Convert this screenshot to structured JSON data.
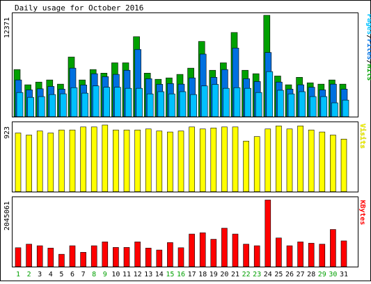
{
  "title": "Daily usage for October 2016",
  "colors": {
    "hits": "#00a000",
    "files": "#0070e0",
    "pages": "#00c0ff",
    "visits": "#ffff00",
    "kbytes": "#ff0000",
    "weekend_label": "#00a000",
    "weekday_label": "#000000",
    "frame": "#000000",
    "bar_outline": "#000000"
  },
  "chart_data": [
    {
      "type": "bar",
      "panel": "top",
      "y_tick_label": "12371",
      "ylim": [
        0,
        12371
      ],
      "legend_labels": [
        "Pages",
        "/",
        "Files",
        "/",
        "Hits"
      ],
      "legend_colors": [
        "#00c0ff",
        "#000000",
        "#0070e0",
        "#000000",
        "#00a000"
      ],
      "categories": [
        "1",
        "2",
        "3",
        "4",
        "5",
        "6",
        "7",
        "8",
        "9",
        "10",
        "11",
        "12",
        "13",
        "14",
        "15",
        "16",
        "17",
        "18",
        "19",
        "20",
        "21",
        "22",
        "23",
        "24",
        "25",
        "26",
        "27",
        "28",
        "29",
        "30",
        "31"
      ],
      "weekend": [
        true,
        true,
        false,
        false,
        false,
        false,
        false,
        true,
        true,
        false,
        false,
        false,
        false,
        false,
        true,
        true,
        false,
        false,
        false,
        false,
        false,
        true,
        true,
        false,
        false,
        false,
        false,
        false,
        true,
        true,
        false
      ],
      "series": [
        {
          "name": "Hits",
          "values": [
            5750,
            3890,
            4220,
            4480,
            3970,
            7280,
            4480,
            5750,
            5310,
            6570,
            6570,
            9760,
            5310,
            4560,
            4730,
            5160,
            5920,
            9180,
            5660,
            6570,
            10270,
            5660,
            5240,
            12371,
            4960,
            3890,
            4800,
            4130,
            3970,
            4480,
            3970
          ]
        },
        {
          "name": "Files",
          "values": [
            4480,
            3270,
            3400,
            3690,
            3360,
            5920,
            3870,
            5240,
            4880,
            5160,
            5660,
            8200,
            4630,
            3950,
            4040,
            3970,
            4730,
            7630,
            4800,
            5750,
            8370,
            4630,
            4290,
            7830,
            4220,
            3360,
            3890,
            3590,
            3270,
            3970,
            3360
          ]
        },
        {
          "name": "Pages",
          "values": [
            2950,
            2360,
            2450,
            2700,
            2790,
            3540,
            2870,
            3750,
            3590,
            3590,
            3460,
            3460,
            2780,
            3050,
            2780,
            3050,
            2700,
            3750,
            3940,
            3460,
            3540,
            3460,
            2950,
            5500,
            3220,
            2780,
            3050,
            2450,
            2450,
            1690,
            2020
          ]
        }
      ]
    },
    {
      "type": "bar",
      "panel": "middle",
      "y_tick_label": "923",
      "ylim": [
        0,
        923
      ],
      "legend_labels": [
        "Visits"
      ],
      "legend_colors": [
        "#ffff00"
      ],
      "categories": [
        "1",
        "2",
        "3",
        "4",
        "5",
        "6",
        "7",
        "8",
        "9",
        "10",
        "11",
        "12",
        "13",
        "14",
        "15",
        "16",
        "17",
        "18",
        "19",
        "20",
        "21",
        "22",
        "23",
        "24",
        "25",
        "26",
        "27",
        "28",
        "29",
        "30",
        "31"
      ],
      "series": [
        {
          "name": "Visits",
          "values": [
            812,
            784,
            840,
            812,
            854,
            854,
            896,
            896,
            923,
            854,
            854,
            854,
            868,
            840,
            826,
            840,
            896,
            868,
            882,
            896,
            896,
            700,
            763,
            868,
            910,
            868,
            910,
            854,
            826,
            784,
            728
          ]
        }
      ]
    },
    {
      "type": "bar",
      "panel": "bottom",
      "y_tick_label": "2045061",
      "ylim": [
        0,
        2045061
      ],
      "legend_labels": [
        "KBytes"
      ],
      "legend_colors": [
        "#ff0000"
      ],
      "categories": [
        "1",
        "2",
        "3",
        "4",
        "5",
        "6",
        "7",
        "8",
        "9",
        "10",
        "11",
        "12",
        "13",
        "14",
        "15",
        "16",
        "17",
        "18",
        "19",
        "20",
        "21",
        "22",
        "23",
        "24",
        "25",
        "26",
        "27",
        "28",
        "29",
        "30",
        "31"
      ],
      "series": [
        {
          "name": "KBytes",
          "values": [
            580000,
            690000,
            640000,
            570000,
            380000,
            640000,
            440000,
            640000,
            760000,
            590000,
            590000,
            760000,
            570000,
            510000,
            740000,
            580000,
            1000000,
            1040000,
            840000,
            1180000,
            1000000,
            690000,
            640000,
            2045061,
            880000,
            640000,
            760000,
            720000,
            690000,
            1140000,
            790000
          ]
        }
      ]
    }
  ]
}
